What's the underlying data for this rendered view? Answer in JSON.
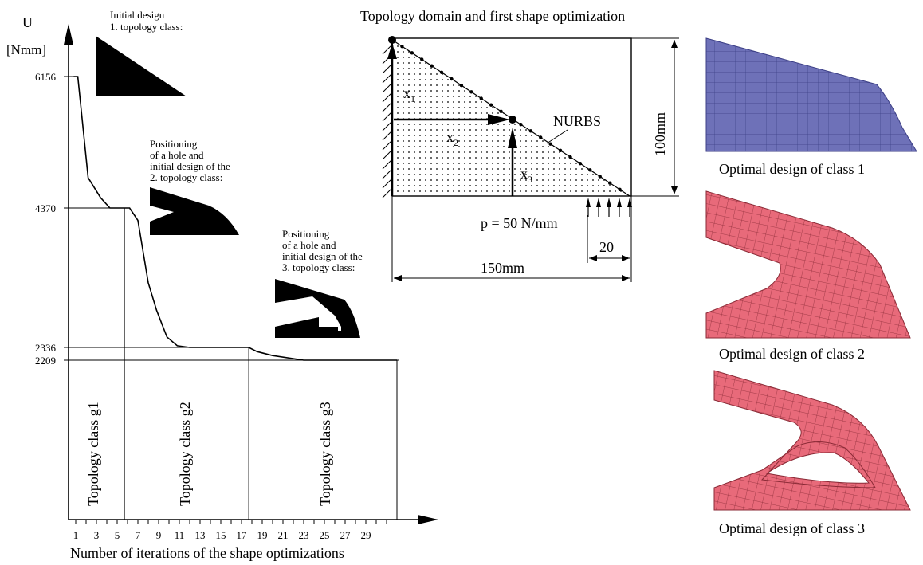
{
  "header": {
    "title": "Topology domain and first shape optimization"
  },
  "chart": {
    "y_label_symbol": "U",
    "y_label_unit": "[Nmm]",
    "x_label": "Number of iterations of the shape optimizations",
    "y_ticks": [
      {
        "value": 6156,
        "label": "6156"
      },
      {
        "value": 4370,
        "label": "4370"
      },
      {
        "value": 2336,
        "label": "2336"
      },
      {
        "value": 2209,
        "label": "2209"
      }
    ],
    "x_ticks": [
      {
        "value": 1,
        "label": "1"
      },
      {
        "value": 3,
        "label": "3"
      },
      {
        "value": 5,
        "label": "5"
      },
      {
        "value": 7,
        "label": "7"
      },
      {
        "value": 9,
        "label": "9"
      },
      {
        "value": 11,
        "label": "11"
      },
      {
        "value": 13,
        "label": "13"
      },
      {
        "value": 15,
        "label": "15"
      },
      {
        "value": 17,
        "label": "17"
      },
      {
        "value": 19,
        "label": "19"
      },
      {
        "value": 21,
        "label": "21"
      },
      {
        "value": 23,
        "label": "23"
      },
      {
        "value": 25,
        "label": "25"
      },
      {
        "value": 27,
        "label": "27"
      },
      {
        "value": 29,
        "label": "29"
      }
    ],
    "class_labels": [
      "Topology class g1",
      "Topology class g2",
      "Topology class g3"
    ],
    "annotations": {
      "a1_line1": "Initial design",
      "a1_line2": "1. topology class:",
      "a2_line1": "Positioning",
      "a2_line2": "of a hole and",
      "a2_line3": "initial design of the",
      "a2_line4": "2. topology class:",
      "a3_line1": "Positioning",
      "a3_line2": "of a hole and",
      "a3_line3": "initial design of the",
      "a3_line4": "3. topology class:"
    }
  },
  "chart_data": {
    "type": "line",
    "x": [
      0.8,
      1.2,
      2.2,
      3.4,
      4.3,
      5.0,
      5.7,
      6.2,
      7.0,
      8.0,
      8.8,
      9.8,
      10.8,
      12.0,
      14.0,
      16.0,
      17.7,
      18.5,
      20.0,
      23.0,
      26.0,
      29.0,
      32.0
    ],
    "y": [
      6156,
      6156,
      4780,
      4510,
      4370,
      4370,
      4370,
      4370,
      4190,
      3280,
      2880,
      2490,
      2360,
      2336,
      2336,
      2336,
      2336,
      2295,
      2255,
      2209,
      2209,
      2209,
      2209
    ],
    "xlabel": "Number of iterations of the shape optimizations",
    "ylabel": "U [Nmm]",
    "class_boundaries": [
      5.7,
      17.7,
      32.0
    ]
  },
  "domain": {
    "labels": {
      "x1": "x",
      "x1_sub": "1",
      "x2": "x",
      "x2_sub": "2",
      "x3": "x",
      "x3_sub": "3",
      "nurbs": "NURBS",
      "height": "100mm",
      "load": "p = 50 N/mm",
      "load_width": "20",
      "width": "150mm"
    }
  },
  "results": {
    "class1_caption": "Optimal design of class 1",
    "class2_caption": "Optimal design of class 2",
    "class3_caption": "Optimal design of class 3",
    "class1_color": "#6e71b8",
    "class23_color": "#e86a7a"
  }
}
